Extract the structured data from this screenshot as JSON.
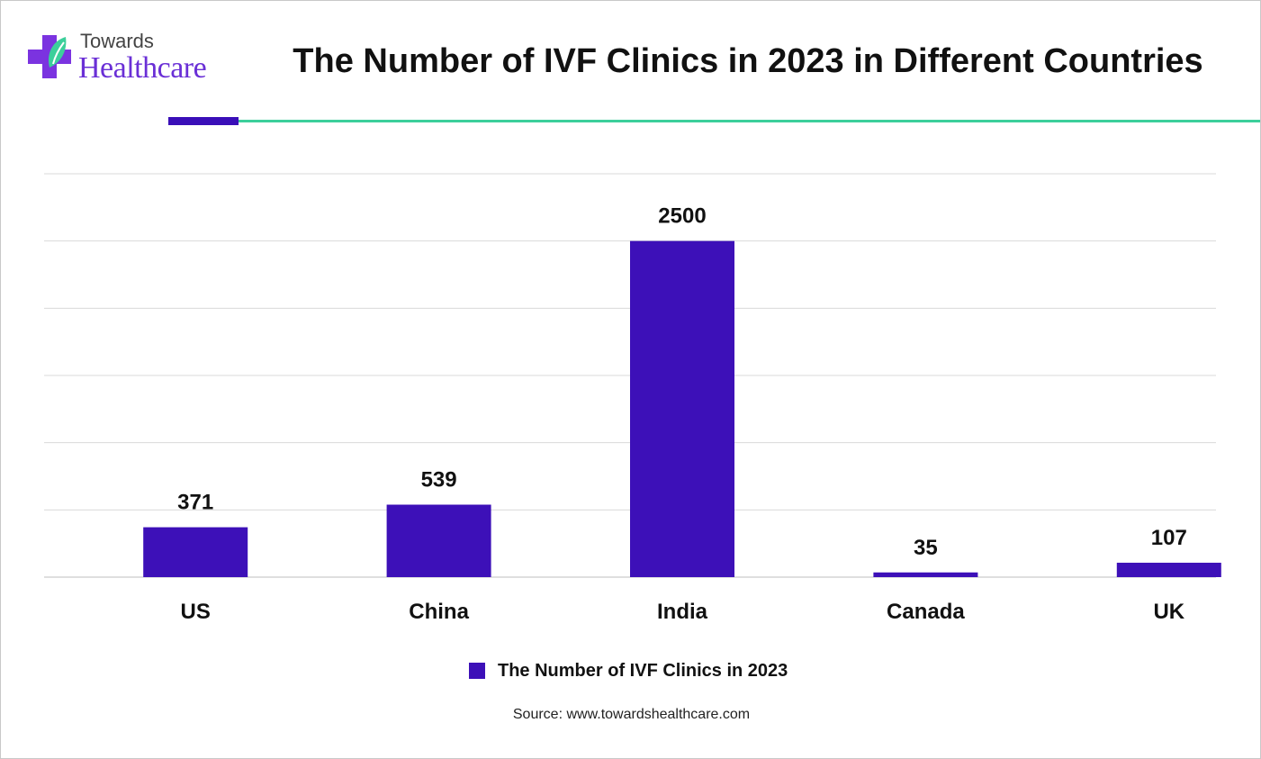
{
  "logo": {
    "line1": "Towards",
    "line2": "Healthcare"
  },
  "source": "Source: www.towardshealthcare.com",
  "colors": {
    "bar": "#3d10b8",
    "grid": "#d9d9d9",
    "accent": "#3ccf9b",
    "brand": "#6a2fd6"
  },
  "chart_data": {
    "type": "bar",
    "title": "The Number of IVF Clinics in 2023 in Different Countries",
    "categories": [
      "US",
      "China",
      "India",
      "Canada",
      "UK"
    ],
    "series": [
      {
        "name": "The Number of IVF Clinics in 2023",
        "values": [
          371,
          539,
          2500,
          35,
          107
        ]
      }
    ],
    "xlabel": "",
    "ylabel": "",
    "ylim": [
      0,
      3000
    ],
    "grid": true,
    "legend": "bottom"
  }
}
